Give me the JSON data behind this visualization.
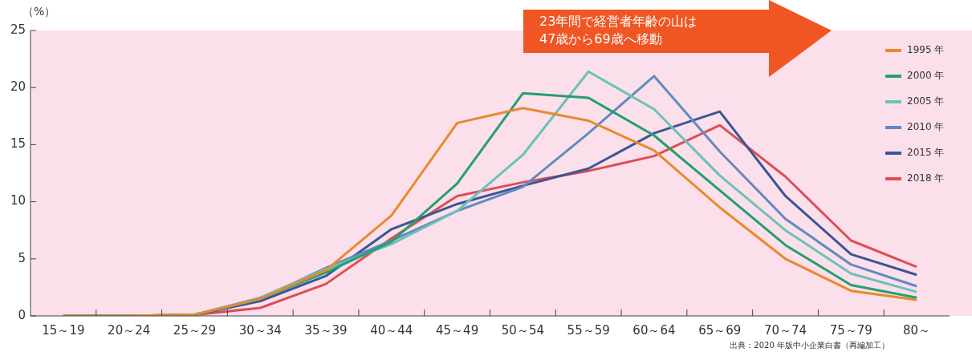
{
  "chart_data": {
    "type": "line",
    "ylabel": "（%）",
    "categories": [
      "15～19",
      "20～24",
      "25～29",
      "30～34",
      "35～39",
      "40～44",
      "45～49",
      "50～54",
      "55～59",
      "60～64",
      "65～69",
      "70～74",
      "75～79",
      "80～"
    ],
    "ylim": [
      0,
      25
    ],
    "yticks": [
      0,
      5,
      10,
      15,
      20,
      25
    ],
    "grid": false,
    "legend": "top right",
    "marker": "none",
    "line_style": "solid",
    "series": [
      {
        "name": "1995 年",
        "color": "#e8892f",
        "values": [
          0,
          0,
          0.1,
          1.5,
          4.0,
          8.8,
          16.9,
          18.2,
          17.1,
          14.5,
          9.5,
          5.0,
          2.2,
          1.4
        ]
      },
      {
        "name": "2000 年",
        "color": "#22a06f",
        "values": [
          0,
          0,
          0.1,
          1.5,
          3.8,
          6.5,
          11.6,
          19.5,
          19.1,
          15.8,
          11.0,
          6.2,
          2.7,
          1.6
        ]
      },
      {
        "name": "2005 年",
        "color": "#6cc1b8",
        "values": [
          0,
          0,
          0.1,
          1.6,
          4.1,
          6.3,
          9.2,
          14.1,
          21.4,
          18.1,
          12.3,
          7.5,
          3.7,
          2.1
        ]
      },
      {
        "name": "2010 年",
        "color": "#5f8cc0",
        "values": [
          0,
          0,
          0.1,
          1.5,
          4.2,
          6.6,
          9.2,
          11.3,
          16.0,
          21.0,
          14.4,
          8.5,
          4.5,
          2.6
        ]
      },
      {
        "name": "2015 年",
        "color": "#3b5597",
        "values": [
          0,
          0,
          0.1,
          1.3,
          3.5,
          7.6,
          9.8,
          11.4,
          12.9,
          16.0,
          17.9,
          10.5,
          5.4,
          3.6
        ]
      },
      {
        "name": "2018 年",
        "color": "#dc4f55",
        "values": [
          0,
          0,
          0.1,
          0.7,
          2.8,
          6.8,
          10.5,
          11.7,
          12.7,
          14.0,
          16.7,
          12.2,
          6.6,
          4.3
        ]
      }
    ],
    "annotations": [
      "23年間で経営者年齢の山は\n47歳から69歳へ移動",
      "出典：2020 年版中小企業白書（再編加工）"
    ]
  }
}
